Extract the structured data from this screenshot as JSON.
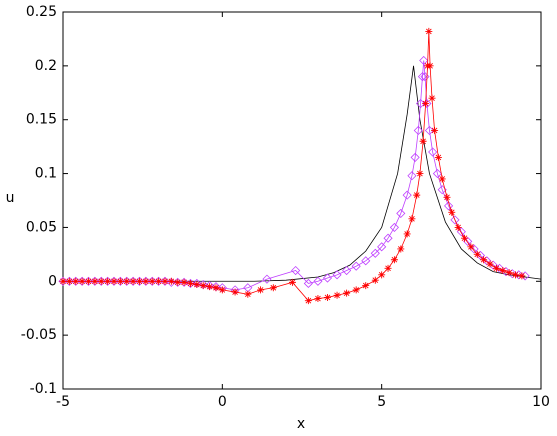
{
  "chart_data": {
    "type": "line",
    "xlabel": "x",
    "ylabel": "u",
    "xlim": [
      -5,
      10
    ],
    "ylim": [
      -0.1,
      0.25
    ],
    "xticks": [
      -5,
      0,
      5,
      10
    ],
    "yticks": [
      -0.1,
      -0.05,
      0,
      0.05,
      0.1,
      0.15,
      0.2,
      0.25
    ],
    "grid": false,
    "box": true,
    "series": [
      {
        "color": "#000000",
        "marker": "none",
        "x": [
          -5,
          -4,
          -3,
          -2,
          -1,
          0,
          1,
          2,
          3,
          3.5,
          4,
          4.5,
          5,
          5.5,
          5.8,
          6,
          6.2,
          6.5,
          7,
          7.5,
          8,
          8.5,
          9,
          9.5,
          10
        ],
        "values": [
          0,
          0,
          0,
          0,
          0,
          0,
          0,
          0.001,
          0.004,
          0.008,
          0.015,
          0.028,
          0.05,
          0.1,
          0.155,
          0.2,
          0.15,
          0.1,
          0.055,
          0.03,
          0.017,
          0.009,
          0.006,
          0.004,
          0.002
        ]
      },
      {
        "color": "#bf40ff",
        "marker": "diamond",
        "x": [
          -5,
          -4.8,
          -4.6,
          -4.4,
          -4.2,
          -4,
          -3.8,
          -3.6,
          -3.4,
          -3.2,
          -3,
          -2.8,
          -2.6,
          -2.4,
          -2.2,
          -2,
          -1.8,
          -1.6,
          -1.4,
          -1.2,
          -1,
          -0.8,
          -0.6,
          -0.4,
          -0.2,
          0,
          0.4,
          0.8,
          1.4,
          2.3,
          2.7,
          3,
          3.3,
          3.6,
          3.9,
          4.2,
          4.5,
          4.8,
          5,
          5.2,
          5.4,
          5.6,
          5.8,
          5.95,
          6.05,
          6.15,
          6.22,
          6.28,
          6.32,
          6.36,
          6.42,
          6.5,
          6.6,
          6.75,
          6.9,
          7.1,
          7.3,
          7.5,
          7.7,
          7.9,
          8.1,
          8.3,
          8.5,
          8.7,
          8.9,
          9.1,
          9.3,
          9.5
        ],
        "values": [
          0,
          0,
          0,
          0,
          0,
          0,
          0,
          0,
          0,
          0,
          0,
          0,
          0,
          0,
          0,
          0,
          0,
          -0.001,
          -0.001,
          -0.001,
          -0.002,
          -0.002,
          -0.003,
          -0.004,
          -0.005,
          -0.006,
          -0.008,
          -0.006,
          0.002,
          0.01,
          -0.002,
          0,
          0.003,
          0.006,
          0.01,
          0.014,
          0.019,
          0.026,
          0.032,
          0.04,
          0.05,
          0.063,
          0.08,
          0.098,
          0.115,
          0.14,
          0.165,
          0.19,
          0.205,
          0.19,
          0.165,
          0.14,
          0.12,
          0.1,
          0.085,
          0.07,
          0.057,
          0.046,
          0.037,
          0.03,
          0.024,
          0.019,
          0.015,
          0.012,
          0.009,
          0.007,
          0.006,
          0.005
        ]
      },
      {
        "color": "#ff0000",
        "marker": "asterisk",
        "x": [
          -5,
          -4.8,
          -4.6,
          -4.4,
          -4.2,
          -4,
          -3.8,
          -3.6,
          -3.4,
          -3.2,
          -3,
          -2.8,
          -2.6,
          -2.4,
          -2.2,
          -2,
          -1.8,
          -1.6,
          -1.4,
          -1.2,
          -1,
          -0.8,
          -0.6,
          -0.4,
          -0.2,
          0,
          0.4,
          0.8,
          1.2,
          1.6,
          2.2,
          2.7,
          3,
          3.3,
          3.6,
          3.9,
          4.2,
          4.5,
          4.8,
          5,
          5.2,
          5.4,
          5.6,
          5.8,
          5.95,
          6.1,
          6.2,
          6.3,
          6.38,
          6.44,
          6.48,
          6.52,
          6.58,
          6.66,
          6.78,
          6.9,
          7.05,
          7.2,
          7.4,
          7.6,
          7.8,
          8,
          8.2,
          8.4,
          8.6,
          8.8,
          9,
          9.2,
          9.4
        ],
        "values": [
          0,
          0,
          0,
          0,
          0,
          0,
          0,
          0,
          0,
          0,
          0,
          0,
          0,
          0,
          0,
          0,
          0,
          0,
          -0.001,
          -0.001,
          -0.002,
          -0.003,
          -0.004,
          -0.005,
          -0.006,
          -0.008,
          -0.01,
          -0.012,
          -0.008,
          -0.006,
          -0.001,
          -0.018,
          -0.016,
          -0.015,
          -0.013,
          -0.011,
          -0.008,
          -0.004,
          0.001,
          0.006,
          0.012,
          0.02,
          0.03,
          0.044,
          0.058,
          0.08,
          0.1,
          0.13,
          0.165,
          0.2,
          0.232,
          0.2,
          0.17,
          0.14,
          0.115,
          0.095,
          0.078,
          0.064,
          0.05,
          0.04,
          0.032,
          0.025,
          0.02,
          0.016,
          0.012,
          0.01,
          0.008,
          0.006,
          0.005
        ]
      }
    ]
  }
}
